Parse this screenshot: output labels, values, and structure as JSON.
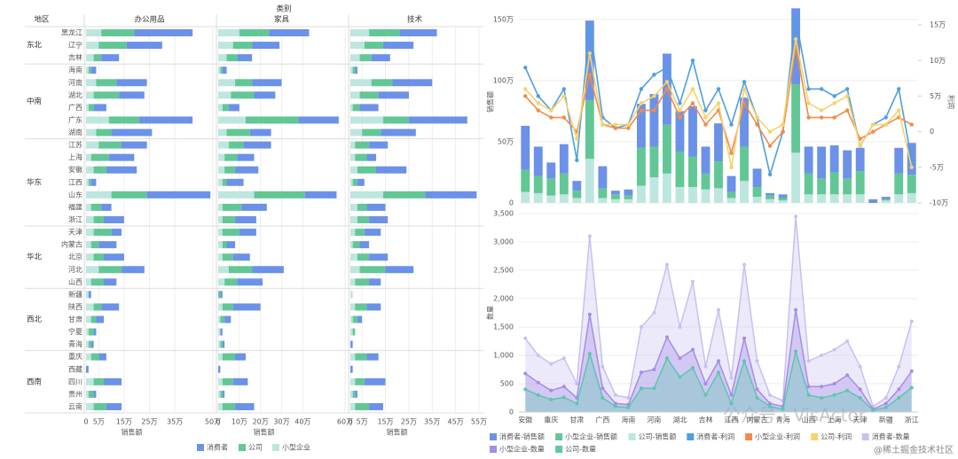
{
  "chart_data": [
    {
      "type": "bar",
      "orientation": "horizontal",
      "row_header": "地区",
      "column_header": "类别",
      "x_label": "销售额",
      "groups": [
        {
          "name": "东北",
          "rows": [
            "黑龙江",
            "辽宁",
            "吉林"
          ]
        },
        {
          "name": "中南",
          "rows": [
            "海南",
            "河南",
            "湖北",
            "广西",
            "广东",
            "湖南"
          ]
        },
        {
          "name": "华东",
          "rows": [
            "江苏",
            "上海",
            "安徽",
            "江西",
            "山东",
            "福建",
            "浙江"
          ]
        },
        {
          "name": "华北",
          "rows": [
            "天津",
            "内蒙古",
            "北京",
            "河北",
            "山西"
          ]
        },
        {
          "name": "西北",
          "rows": [
            "新疆",
            "陕西",
            "甘肃",
            "宁夏",
            "青海"
          ]
        },
        {
          "name": "西南",
          "rows": [
            "重庆",
            "西藏",
            "四川",
            "贵州",
            "云南"
          ]
        }
      ],
      "facets": [
        {
          "name": "办公用品",
          "xlim": [
            0,
            500000
          ],
          "xticks": [
            0,
            {
              "value": 50000,
              "label": "5万"
            },
            {
              "value": 150000,
              "label": "15万"
            },
            {
              "value": 250000,
              "label": "25万"
            },
            {
              "value": 350000,
              "label": "35万"
            },
            {
              "value": 500000,
              "label": "50万"
            }
          ]
        },
        {
          "name": "家具",
          "xlim": [
            0,
            600000
          ],
          "xticks": [
            0,
            {
              "value": 100000,
              "label": "10万"
            },
            {
              "value": 200000,
              "label": "20万"
            },
            {
              "value": 300000,
              "label": "30万"
            },
            {
              "value": 400000,
              "label": "40万"
            },
            {
              "value": 600000,
              "label": "60万"
            }
          ]
        },
        {
          "name": "技术",
          "xlim": [
            0,
            550000
          ],
          "xticks": [
            0,
            {
              "value": 50000,
              "label": "5万"
            },
            {
              "value": 150000,
              "label": "15万"
            },
            {
              "value": 250000,
              "label": "25万"
            },
            {
              "value": 350000,
              "label": "35万"
            },
            {
              "value": 450000,
              "label": "45万"
            },
            {
              "value": 550000,
              "label": "55万"
            }
          ]
        }
      ],
      "series": [
        {
          "name": "消费者",
          "color": "#6b92e8",
          "values": [
            [
              230000,
              140000,
              70000,
              20000,
              120000,
              100000,
              50000,
              210000,
              160000,
              100000,
              100000,
              120000,
              20000,
              250000,
              40000,
              80000,
              40000,
              70000,
              80000,
              90000,
              50000,
              10000,
              70000,
              30000,
              10000,
              10000,
              30000,
              10000,
              70000,
              10000,
              60000
            ],
            [
              190000,
              130000,
              70000,
              20000,
              140000,
              100000,
              50000,
              190000,
              100000,
              130000,
              80000,
              110000,
              80000,
              150000,
              120000,
              100000,
              80000,
              40000,
              80000,
              150000,
              120000,
              10000,
              130000,
              30000,
              10000,
              10000,
              50000,
              10000,
              70000,
              10000,
              90000
            ],
            [
              160000,
              130000,
              80000,
              10000,
              170000,
              130000,
              80000,
              250000,
              150000,
              80000,
              40000,
              130000,
              30000,
              220000,
              80000,
              80000,
              70000,
              40000,
              80000,
              120000,
              50000,
              0,
              60000,
              20000,
              0,
              10000,
              50000,
              10000,
              90000,
              10000,
              60000
            ]
          ]
        },
        {
          "name": "公司",
          "color": "#62c795",
          "values": [
            [
              130000,
              110000,
              30000,
              10000,
              80000,
              100000,
              20000,
              120000,
              60000,
              90000,
              70000,
              50000,
              10000,
              140000,
              40000,
              40000,
              70000,
              30000,
              40000,
              90000,
              50000,
              0,
              30000,
              20000,
              20000,
              10000,
              30000,
              0,
              40000,
              20000,
              50000
            ],
            [
              140000,
              90000,
              50000,
              10000,
              80000,
              110000,
              30000,
              250000,
              110000,
              70000,
              60000,
              50000,
              20000,
              240000,
              90000,
              60000,
              80000,
              20000,
              50000,
              110000,
              60000,
              10000,
              50000,
              20000,
              0,
              10000,
              60000,
              0,
              50000,
              10000,
              60000
            ],
            [
              130000,
              80000,
              50000,
              10000,
              90000,
              80000,
              30000,
              110000,
              80000,
              60000,
              50000,
              80000,
              20000,
              180000,
              40000,
              50000,
              40000,
              30000,
              50000,
              110000,
              60000,
              0,
              50000,
              20000,
              10000,
              0,
              50000,
              0,
              40000,
              10000,
              60000
            ]
          ]
        },
        {
          "name": "小型企业",
          "color": "#bde6df",
          "values": [
            [
              60000,
              50000,
              30000,
              10000,
              40000,
              30000,
              10000,
              90000,
              40000,
              50000,
              20000,
              30000,
              10000,
              100000,
              20000,
              30000,
              30000,
              20000,
              30000,
              50000,
              20000,
              10000,
              30000,
              20000,
              10000,
              10000,
              20000,
              0,
              30000,
              10000,
              30000
            ],
            [
              100000,
              70000,
              40000,
              10000,
              80000,
              60000,
              20000,
              130000,
              40000,
              50000,
              30000,
              30000,
              20000,
              170000,
              20000,
              20000,
              20000,
              20000,
              20000,
              50000,
              30000,
              0,
              20000,
              10000,
              10000,
              10000,
              20000,
              0,
              20000,
              10000,
              20000
            ],
            [
              80000,
              60000,
              40000,
              10000,
              90000,
              40000,
              10000,
              140000,
              50000,
              20000,
              20000,
              30000,
              10000,
              140000,
              30000,
              30000,
              20000,
              10000,
              30000,
              40000,
              20000,
              10000,
              20000,
              10000,
              10000,
              0,
              20000,
              0,
              20000,
              10000,
              20000
            ]
          ]
        }
      ]
    },
    {
      "type": "combo",
      "y_label": "销售额",
      "y2_label": "利润",
      "ylim": [
        0,
        1600000
      ],
      "yticks": [
        0,
        {
          "value": 500000,
          "label": "50万"
        },
        {
          "value": 1000000,
          "label": "100万"
        },
        {
          "value": 1500000,
          "label": "150万"
        }
      ],
      "y2lim": [
        -100000,
        175000
      ],
      "y2ticks": [
        {
          "value": -100000,
          "label": "-10万"
        },
        {
          "value": -50000,
          "label": "-5万"
        },
        0,
        {
          "value": 50000,
          "label": "5万"
        },
        {
          "value": 100000,
          "label": "10万"
        },
        {
          "value": 150000,
          "label": "15万"
        }
      ],
      "series": [
        {
          "name": "消费者-销售额",
          "kind": "bar",
          "color": "#6b92e8",
          "values": [
            360000,
            240000,
            130000,
            240000,
            80000,
            650000,
            180000,
            30000,
            50000,
            360000,
            430000,
            580000,
            330000,
            410000,
            220000,
            310000,
            130000,
            400000,
            150000,
            20000,
            30000,
            620000,
            220000,
            260000,
            220000,
            230000,
            190000,
            30000,
            20000,
            210000,
            260000
          ]
        },
        {
          "name": "小型企业-销售额",
          "kind": "bar",
          "color": "#62c795",
          "values": [
            180000,
            140000,
            140000,
            170000,
            60000,
            480000,
            80000,
            40000,
            30000,
            310000,
            250000,
            400000,
            290000,
            250000,
            130000,
            220000,
            50000,
            280000,
            80000,
            30000,
            20000,
            560000,
            170000,
            130000,
            180000,
            130000,
            190000,
            0,
            10000,
            170000,
            150000
          ]
        },
        {
          "name": "公司-销售额",
          "kind": "bar",
          "color": "#bde6df",
          "values": [
            90000,
            80000,
            60000,
            70000,
            40000,
            360000,
            40000,
            30000,
            30000,
            140000,
            210000,
            240000,
            130000,
            130000,
            110000,
            120000,
            40000,
            180000,
            50000,
            30000,
            20000,
            410000,
            70000,
            70000,
            70000,
            70000,
            70000,
            0,
            20000,
            70000,
            80000
          ]
        },
        {
          "name": "消费者-利润",
          "kind": "line",
          "axis": "y2",
          "color": "#4e9fe0",
          "values": [
            90000,
            50000,
            30000,
            60000,
            -40000,
            150000,
            20000,
            5000,
            10000,
            60000,
            80000,
            90000,
            40000,
            100000,
            30000,
            60000,
            10000,
            70000,
            20000,
            -60000,
            0,
            160000,
            60000,
            60000,
            50000,
            60000,
            -20000,
            10000,
            20000,
            60000,
            -40000
          ]
        },
        {
          "name": "小型企业-利润",
          "kind": "line",
          "axis": "y2",
          "color": "#f08c4a",
          "values": [
            50000,
            30000,
            20000,
            20000,
            0,
            80000,
            10000,
            5000,
            5000,
            30000,
            30000,
            60000,
            20000,
            40000,
            10000,
            30000,
            -30000,
            40000,
            10000,
            -20000,
            0,
            120000,
            20000,
            20000,
            20000,
            30000,
            -10000,
            0,
            10000,
            20000,
            10000
          ]
        },
        {
          "name": "公司-利润",
          "kind": "line",
          "axis": "y2",
          "color": "#f5d36c",
          "values": [
            60000,
            40000,
            30000,
            50000,
            -10000,
            110000,
            10000,
            10000,
            10000,
            40000,
            50000,
            70000,
            30000,
            60000,
            20000,
            40000,
            -50000,
            60000,
            20000,
            0,
            10000,
            130000,
            40000,
            30000,
            40000,
            50000,
            -20000,
            10000,
            10000,
            30000,
            -50000
          ]
        }
      ]
    },
    {
      "type": "area",
      "y_label": "数量",
      "categories": [
        "安徽",
        null,
        "重庆",
        null,
        "甘肃",
        null,
        "广西",
        null,
        "海南",
        null,
        "河南",
        null,
        "湖北",
        null,
        "吉林",
        null,
        "江西",
        null,
        "内蒙古",
        null,
        "青海",
        null,
        "山西",
        null,
        "上海",
        null,
        "天津",
        null,
        "新疆",
        null,
        "浙江"
      ],
      "ylim": [
        0,
        3500
      ],
      "yticks": [
        0,
        500,
        {
          "value": 1000,
          "label": "1,000"
        },
        {
          "value": 1500,
          "label": "1,500"
        },
        {
          "value": 2000,
          "label": "2,000"
        },
        {
          "value": 2500,
          "label": "2,500"
        },
        {
          "value": 3000,
          "label": "3,000"
        },
        {
          "value": 3500,
          "label": "3,500"
        }
      ],
      "series": [
        {
          "name": "消费者-数量",
          "color": "#c9c0f0",
          "values": [
            1300,
            1000,
            850,
            950,
            500,
            3100,
            800,
            300,
            250,
            1500,
            1750,
            2600,
            1500,
            2300,
            800,
            1800,
            600,
            2600,
            900,
            300,
            200,
            3450,
            900,
            1000,
            1100,
            1250,
            800,
            100,
            250,
            800,
            1600
          ]
        },
        {
          "name": "小型企业-数量",
          "color": "#a58de6",
          "values": [
            680,
            520,
            380,
            450,
            250,
            1720,
            420,
            150,
            130,
            700,
            750,
            1320,
            950,
            1100,
            500,
            900,
            300,
            1300,
            400,
            150,
            100,
            1800,
            450,
            450,
            500,
            650,
            400,
            50,
            150,
            400,
            720
          ]
        },
        {
          "name": "公司-数量",
          "color": "#5cc6ae",
          "values": [
            400,
            300,
            220,
            260,
            150,
            1030,
            250,
            100,
            80,
            420,
            420,
            950,
            620,
            780,
            300,
            700,
            150,
            900,
            250,
            100,
            50,
            1070,
            300,
            250,
            300,
            380,
            250,
            30,
            80,
            250,
            430
          ]
        }
      ],
      "watermark": "公众号 · VisActor",
      "credit": "@稀土掘金技术社区"
    }
  ]
}
